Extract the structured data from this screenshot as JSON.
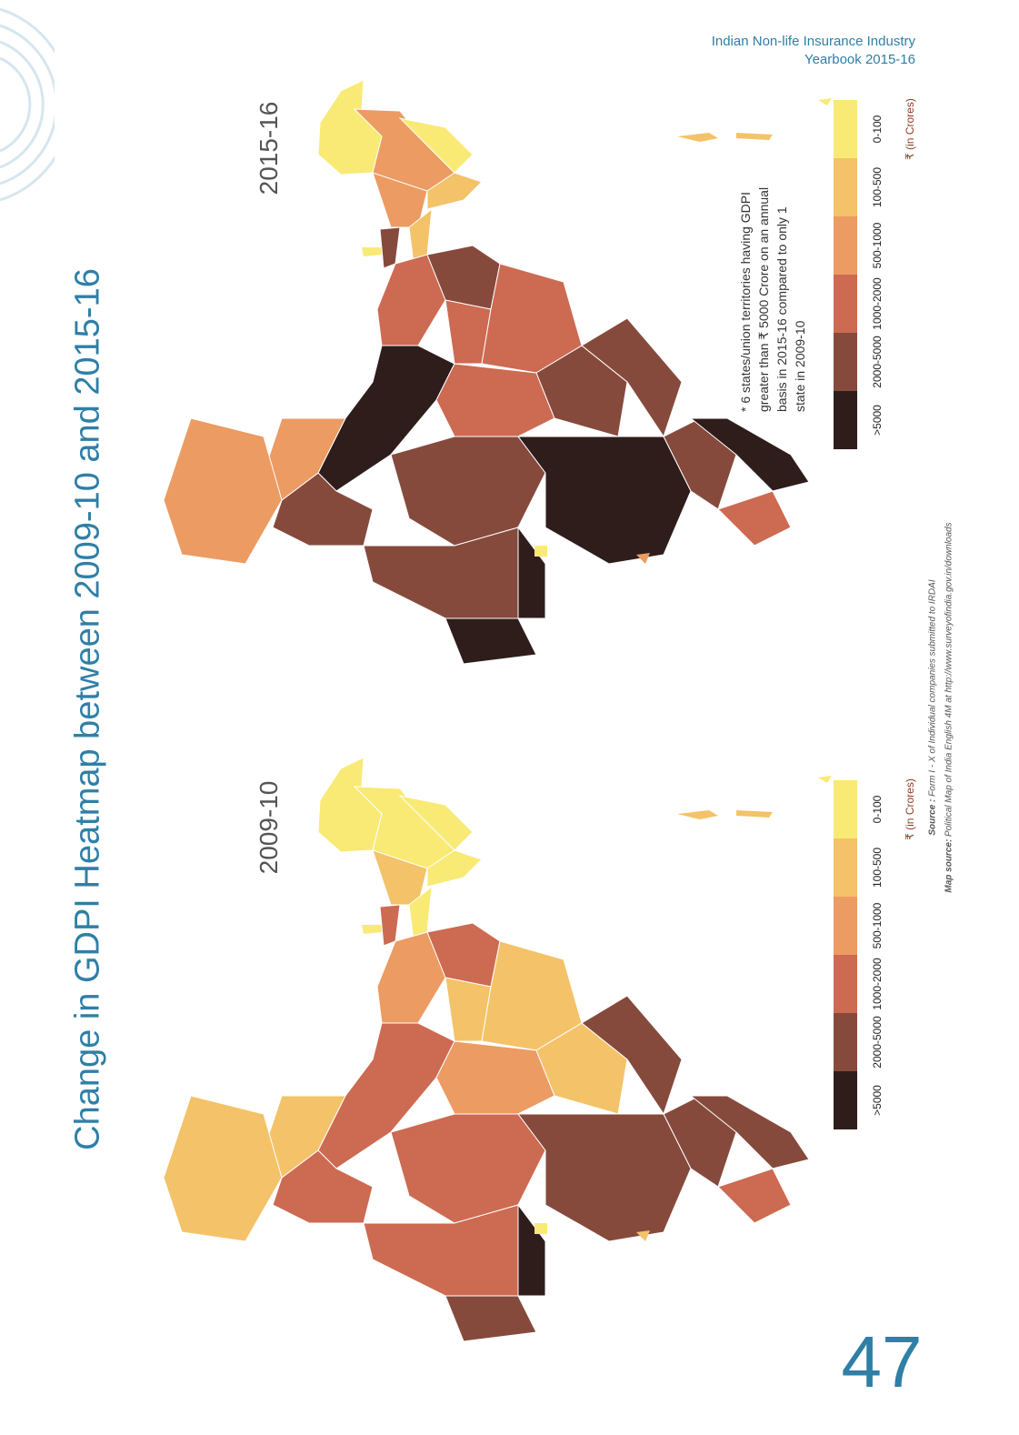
{
  "header": {
    "line1": "Indian Non-life Insurance Industry",
    "line2": "Yearbook 2015-16"
  },
  "title": "Change in GDPI Heatmap between 2009-10 and 2015-16",
  "maps": [
    {
      "label": "2015-16"
    },
    {
      "label": "2009-10"
    }
  ],
  "legend": {
    "unit": "₹ (in Crores)",
    "bins": [
      {
        "label": "0-100",
        "color": "#f9ea75"
      },
      {
        "label": "100-500",
        "color": "#f4c268"
      },
      {
        "label": "500-1000",
        "color": "#ec9b62"
      },
      {
        "label": "1000-2000",
        "color": "#cd6a52"
      },
      {
        "label": "2000-5000",
        "color": "#864a3d"
      },
      {
        "label": ">5000",
        "color": "#2f1d1c"
      }
    ]
  },
  "note": "* 6 states/union territories having GDPI greater than ₹ 5000 Crore on an annual basis in 2015-16 compared to only 1 state in 2009-10",
  "sources": {
    "source_label": "Source :",
    "source_text": "Form I - X of Individual companies submitted to IRDAI",
    "map_source_label": "Map source:",
    "map_source_text": "Political Map of India English 4M at http://www.surveyofindia.gov.in/downloads"
  },
  "page_number": "47"
}
